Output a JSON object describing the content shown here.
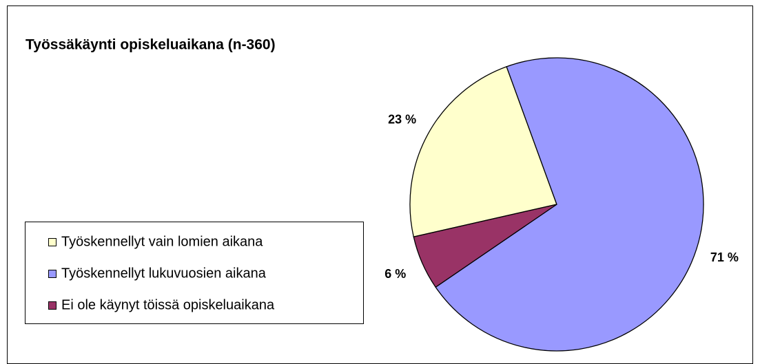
{
  "chart_data": {
    "type": "pie",
    "title": "Työssäkäynti opiskeluaikana (n-360)",
    "categories": [
      "Työskennellyt vain lomien aikana",
      "Työskennellyt lukuvuosien aikana",
      "Ei ole käynyt töissä opiskeluaikana"
    ],
    "values": [
      23,
      71,
      6
    ],
    "value_labels": [
      "23 %",
      "71 %",
      "6 %"
    ],
    "colors": [
      "#ffffcc",
      "#9999ff",
      "#993366"
    ],
    "legend": "left"
  }
}
